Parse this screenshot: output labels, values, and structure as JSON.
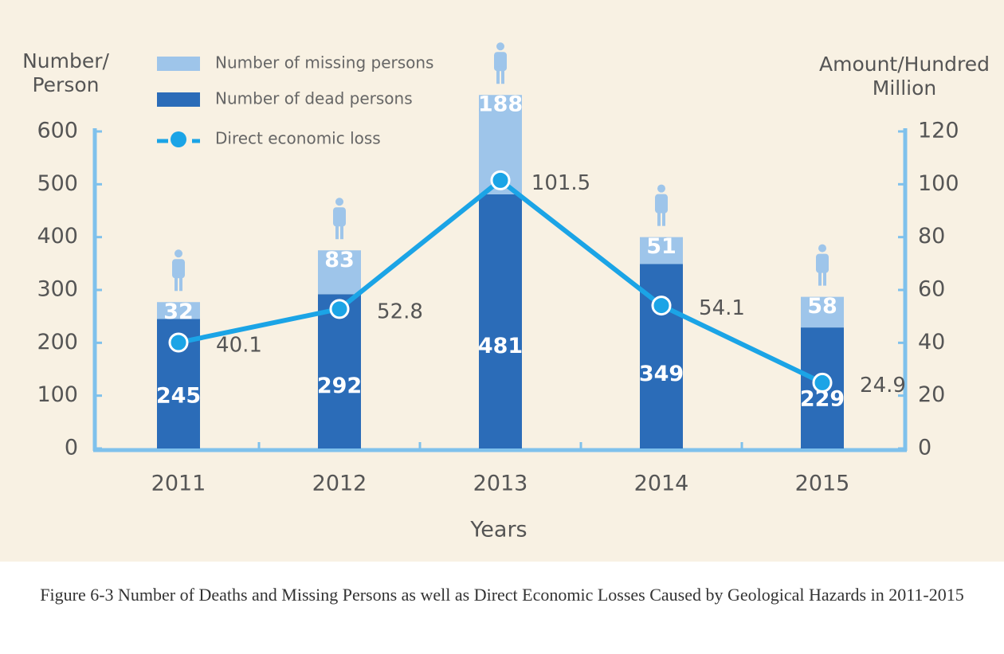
{
  "chart_data": {
    "type": "bar",
    "stacked": true,
    "title": "Figure 6-3 Number of Deaths and Missing Persons as well as Direct Economic Losses Caused by Geological Hazards in 2011-2015",
    "x_label": "Years",
    "y_label": "Number/ Person",
    "y2_label": "Amount/Hundred Million",
    "categories": [
      "2011",
      "2012",
      "2013",
      "2014",
      "2015"
    ],
    "series": [
      {
        "name": "Number of dead persons",
        "color": "#2b6cb8",
        "values": [
          245,
          292,
          481,
          349,
          229
        ]
      },
      {
        "name": "Number of missing persons",
        "color": "#9ec5ea",
        "values": [
          32,
          83,
          188,
          51,
          58
        ]
      },
      {
        "name": "Direct economic loss",
        "color": "#1ba4e6",
        "type": "line",
        "axis": "y2",
        "values": [
          40.1,
          52.8,
          101.5,
          54.1,
          24.9
        ]
      }
    ],
    "ylim": [
      0,
      600
    ],
    "yticks": [
      0,
      100,
      200,
      300,
      400,
      500,
      600
    ],
    "y2lim": [
      0,
      120
    ],
    "y2ticks": [
      0,
      20,
      40,
      60,
      80,
      100,
      120
    ],
    "legend": "top-left",
    "axis_color": "#7fc1ec"
  }
}
